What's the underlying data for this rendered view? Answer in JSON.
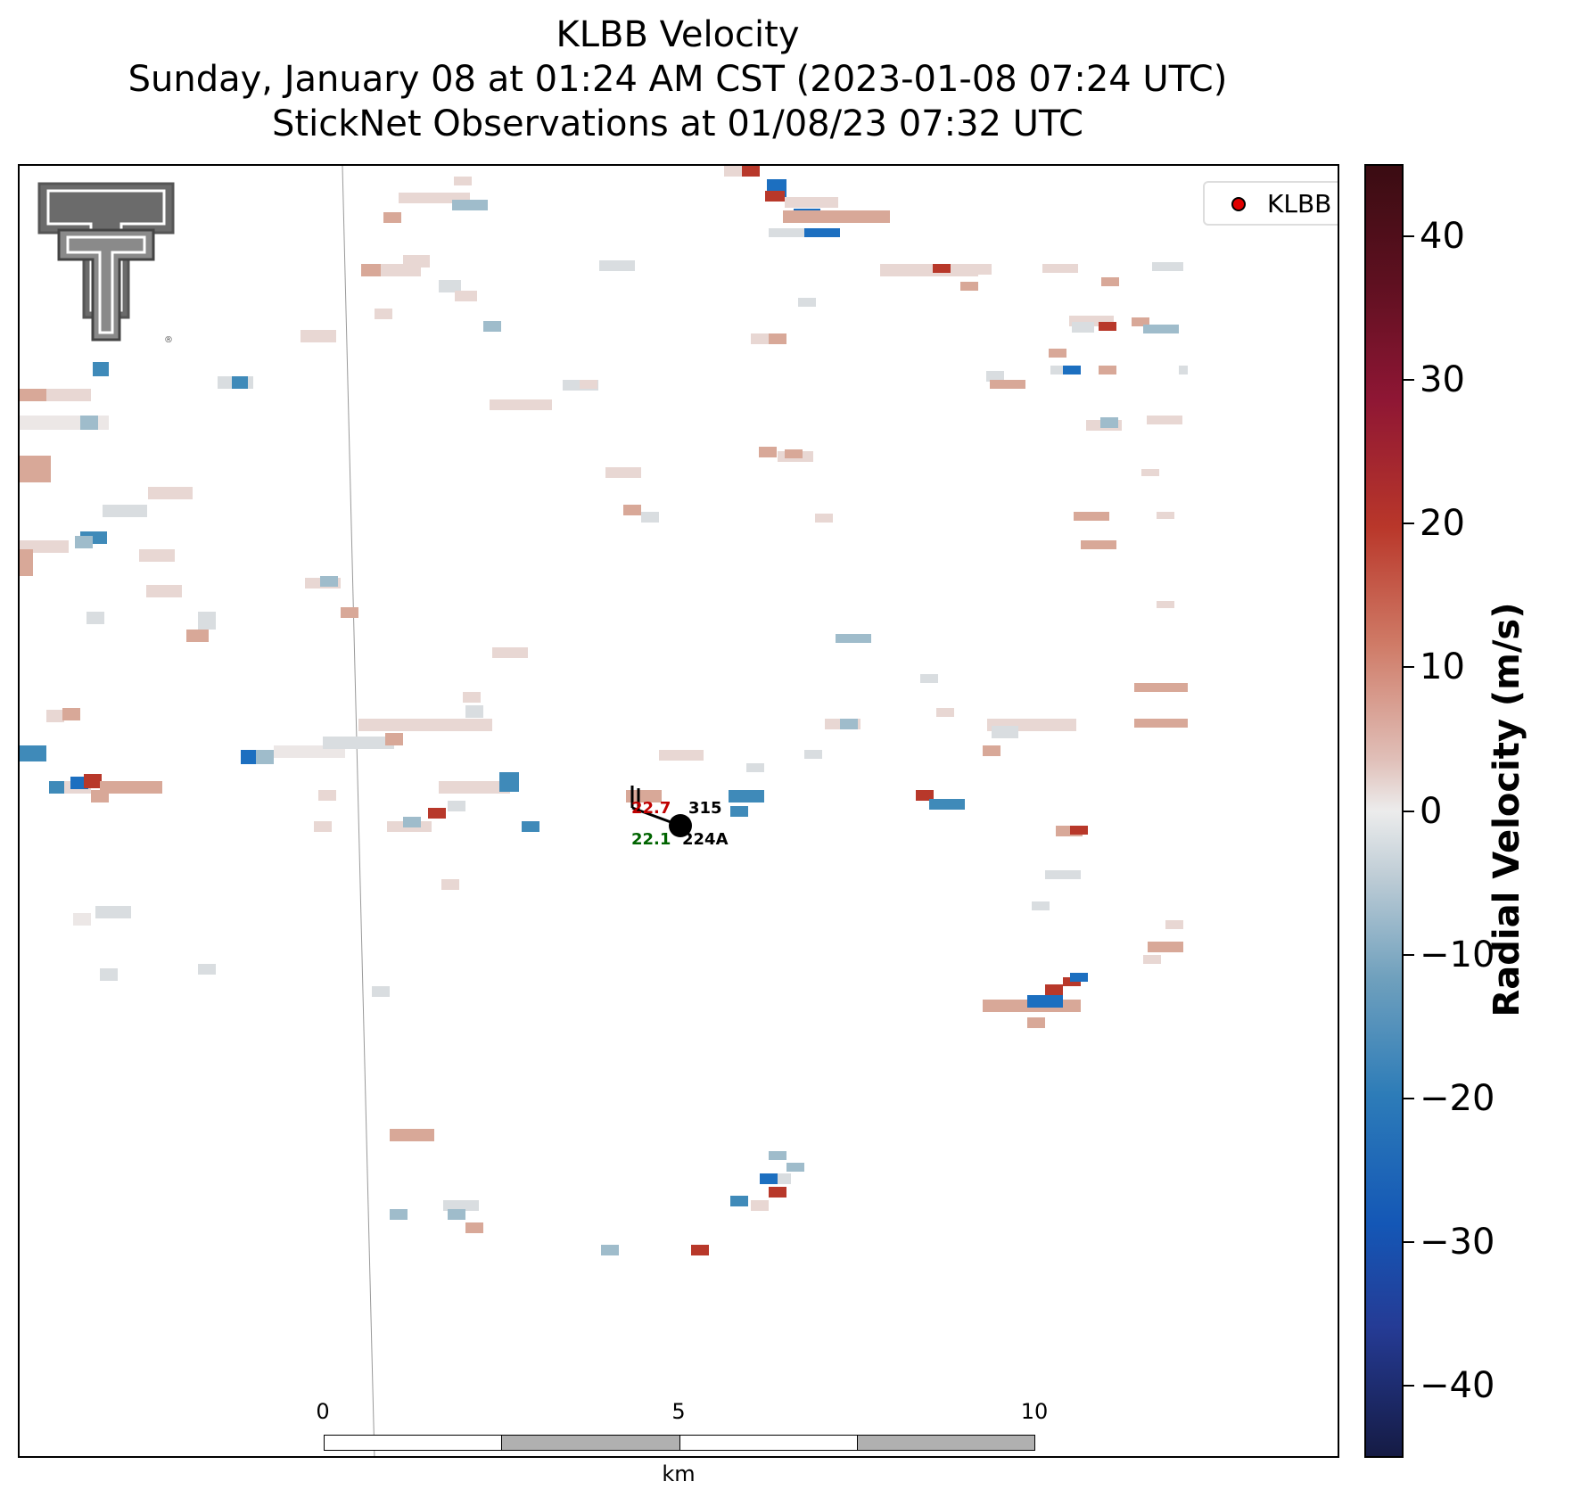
{
  "title": {
    "line1": "KLBB Velocity",
    "line2": "Sunday, January 08 at 01:24 AM CST (2023-01-08 07:24 UTC)",
    "line3": "StickNet Observations at 01/08/23 07:32 UTC"
  },
  "legend": {
    "label": "KLBB",
    "marker_color": "#e00000"
  },
  "station": {
    "temperature": "22.7",
    "dewpoint": "22.1",
    "id_top": "315",
    "id_bottom": "224A",
    "temperature_color": "#c00000",
    "dewpoint_color": "#006400"
  },
  "scale_bar": {
    "ticks": [
      "0",
      "5",
      "10"
    ],
    "unit": "km"
  },
  "colorbar": {
    "title": "Radial Velocity (m/s)",
    "min": -45,
    "max": 45,
    "ticks": [
      "40",
      "30",
      "20",
      "10",
      "0",
      "−10",
      "−20",
      "−30",
      "−40"
    ]
  },
  "logo": {
    "name": "Texas Tech Double T"
  }
}
